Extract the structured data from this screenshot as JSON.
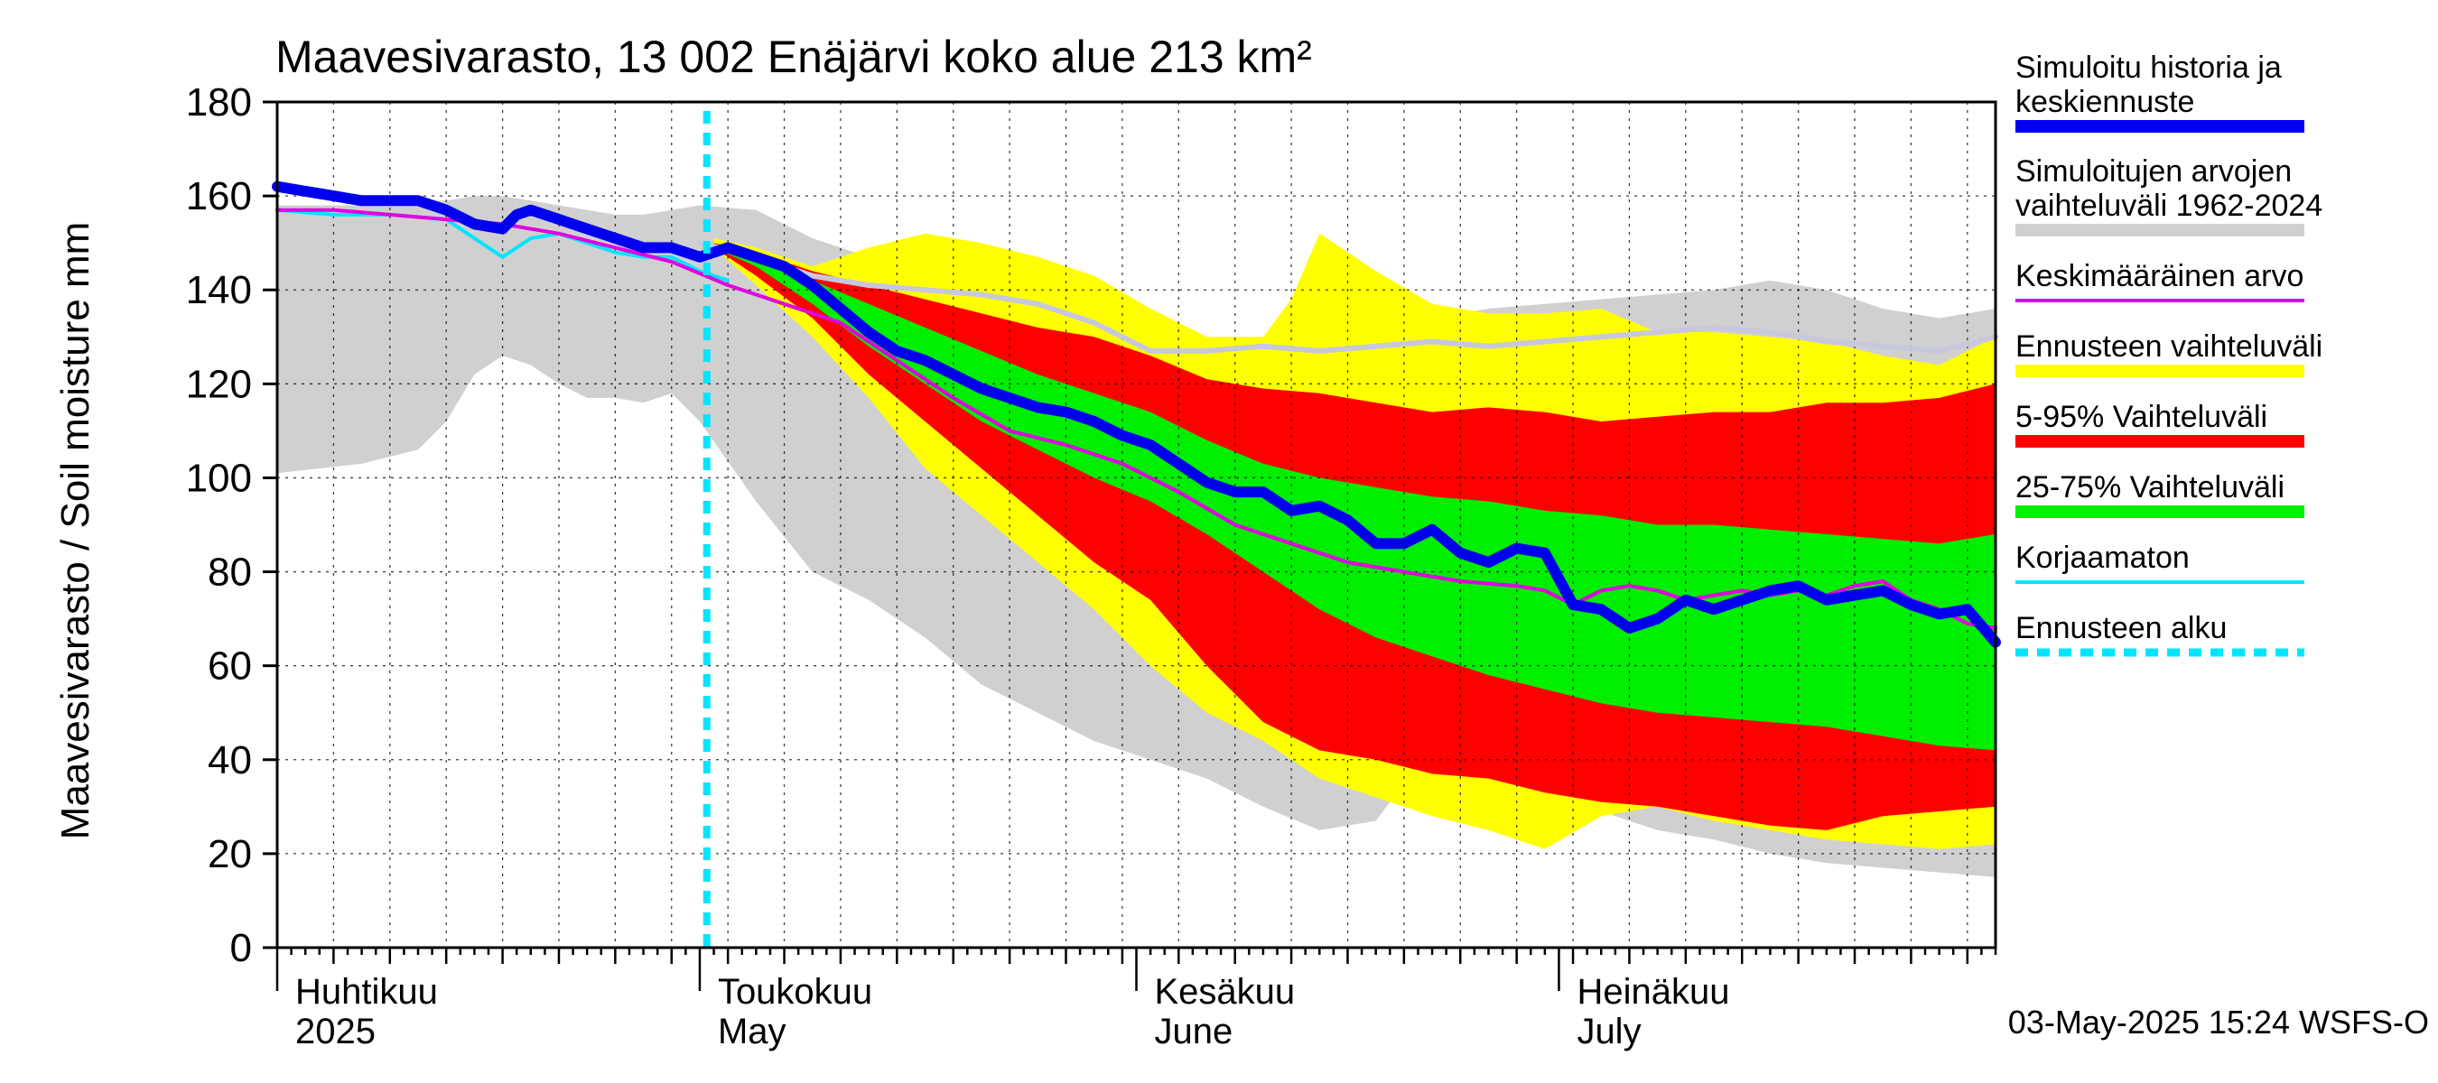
{
  "chart_data": {
    "type": "area",
    "title": "Maavesivarasto, 13 002 Enäjärvi koko alue 213 km²",
    "ylabel": "Maavesivarasto / Soil moisture   mm",
    "xlabel": "",
    "ylim": [
      0,
      180
    ],
    "xlim_days": [
      0,
      122
    ],
    "yticks": [
      0,
      20,
      40,
      60,
      80,
      100,
      120,
      140,
      160,
      180
    ],
    "grid": true,
    "forecast_start_day": 30.5,
    "months": [
      {
        "fi": "Huhtikuu",
        "en": "2025",
        "start_day": 0
      },
      {
        "fi": "Toukokuu",
        "en": "May",
        "start_day": 30
      },
      {
        "fi": "Kesäkuu",
        "en": "June",
        "start_day": 61
      },
      {
        "fi": "Heinäkuu",
        "en": "July",
        "start_day": 91
      }
    ],
    "timestamp": "03-May-2025 15:24 WSFS-O",
    "colors": {
      "history_range": "#d0d0d0",
      "forecast_range": "#ffff00",
      "range_5_95": "#ff0000",
      "range_25_75": "#00ee00",
      "mean": "#e000e0",
      "simulated": "#0000ee",
      "uncorrected": "#00e5ff",
      "forecast_start": "#00e5ff",
      "history_median": "#c8c8dc"
    },
    "legend": [
      {
        "key": "simulated",
        "label": "Simuloitu historia ja keskiennuste",
        "style": "thick"
      },
      {
        "key": "history_range",
        "label": "Simuloitujen arvojen vaihteluväli 1962-2024",
        "style": "thick"
      },
      {
        "key": "mean",
        "label": "Keskimääräinen arvo",
        "style": "thin"
      },
      {
        "key": "forecast_range",
        "label": "Ennusteen vaihteluväli",
        "style": "thick"
      },
      {
        "key": "range_5_95",
        "label": "5-95% Vaihteluväli",
        "style": "thick"
      },
      {
        "key": "range_25_75",
        "label": "25-75% Vaihteluväli",
        "style": "thick"
      },
      {
        "key": "uncorrected",
        "label": "Korjaamaton",
        "style": "thin"
      },
      {
        "key": "forecast_start",
        "label": "Ennusteen alku",
        "style": "dashed"
      }
    ],
    "series": [
      {
        "name": "Simuloitujen arvojen vaihteluväli 1962-2024",
        "x": [
          0,
          6,
          10,
          12,
          14,
          16,
          18,
          20,
          22,
          24,
          26,
          28,
          30,
          34,
          38,
          42,
          46,
          50,
          54,
          58,
          62,
          66,
          70,
          74,
          78,
          80,
          82,
          86,
          90,
          94,
          98,
          102,
          106,
          110,
          114,
          118,
          122
        ],
        "upper": [
          158,
          158,
          159,
          159,
          160,
          160,
          159,
          158,
          157,
          156,
          156,
          157,
          158,
          157,
          151,
          147,
          145,
          142,
          140,
          138,
          134,
          130,
          128,
          130,
          130,
          132,
          134,
          136,
          137,
          138,
          139,
          140,
          142,
          140,
          136,
          134,
          136
        ],
        "lower": [
          101,
          103,
          106,
          112,
          122,
          126,
          124,
          120,
          117,
          117,
          116,
          118,
          112,
          95,
          80,
          74,
          66,
          56,
          50,
          44,
          40,
          36,
          30,
          25,
          27,
          35,
          34,
          33,
          31,
          29,
          25,
          23,
          20,
          18,
          17,
          16,
          15
        ]
      },
      {
        "name": "Ennusteen vaihteluväli",
        "x": [
          31,
          34,
          38,
          42,
          46,
          50,
          54,
          58,
          62,
          66,
          70,
          72,
          74,
          78,
          82,
          86,
          90,
          94,
          98,
          102,
          106,
          110,
          114,
          118,
          122
        ],
        "upper": [
          151,
          149,
          145,
          149,
          152,
          150,
          147,
          143,
          136,
          130,
          130,
          138,
          152,
          144,
          137,
          135,
          135,
          136,
          131,
          131,
          130,
          129,
          126,
          124,
          130
        ],
        "lower": [
          149,
          141,
          130,
          117,
          102,
          92,
          82,
          72,
          60,
          50,
          44,
          40,
          36,
          32,
          28,
          25,
          21,
          28,
          30,
          27,
          25,
          23,
          22,
          21,
          22
        ]
      },
      {
        "name": "5-95% Vaihteluväli",
        "x": [
          31,
          34,
          38,
          42,
          46,
          50,
          54,
          58,
          62,
          66,
          70,
          74,
          78,
          82,
          86,
          90,
          94,
          98,
          102,
          106,
          110,
          114,
          118,
          122
        ],
        "upper": [
          150,
          148,
          144,
          141,
          138,
          135,
          132,
          130,
          126,
          121,
          119,
          118,
          116,
          114,
          115,
          114,
          112,
          113,
          114,
          114,
          116,
          116,
          117,
          120
        ],
        "lower": [
          149,
          143,
          134,
          122,
          112,
          102,
          92,
          82,
          74,
          60,
          48,
          42,
          40,
          37,
          36,
          33,
          31,
          30,
          28,
          26,
          25,
          28,
          29,
          30
        ]
      },
      {
        "name": "25-75% Vaihteluväli",
        "x": [
          31,
          34,
          38,
          42,
          46,
          50,
          54,
          58,
          62,
          66,
          70,
          74,
          78,
          82,
          86,
          90,
          94,
          98,
          102,
          106,
          110,
          114,
          118,
          122
        ],
        "upper": [
          149,
          147,
          142,
          137,
          132,
          127,
          122,
          118,
          114,
          108,
          103,
          100,
          98,
          96,
          95,
          93,
          92,
          90,
          90,
          89,
          88,
          87,
          86,
          88
        ],
        "lower": [
          149,
          145,
          137,
          128,
          120,
          112,
          106,
          100,
          95,
          88,
          80,
          72,
          66,
          62,
          58,
          55,
          52,
          50,
          49,
          48,
          47,
          45,
          43,
          42
        ]
      },
      {
        "name": "Simuloitu historia ja keskiennuste",
        "x": [
          0,
          2,
          4,
          6,
          8,
          10,
          12,
          14,
          16,
          17,
          18,
          20,
          22,
          24,
          26,
          28,
          30,
          32,
          34,
          36,
          38,
          40,
          42,
          44,
          46,
          48,
          50,
          52,
          54,
          56,
          58,
          60,
          62,
          64,
          66,
          68,
          70,
          72,
          74,
          76,
          78,
          80,
          82,
          84,
          86,
          88,
          90,
          92,
          94,
          96,
          98,
          100,
          102,
          104,
          106,
          108,
          110,
          112,
          114,
          116,
          118,
          120,
          122
        ],
        "values": [
          162,
          161,
          160,
          159,
          159,
          159,
          157,
          154,
          153,
          156,
          157,
          155,
          153,
          151,
          149,
          149,
          147,
          149,
          147,
          145,
          141,
          136,
          131,
          127,
          125,
          122,
          119,
          117,
          115,
          114,
          112,
          109,
          107,
          103,
          99,
          97,
          97,
          93,
          94,
          91,
          86,
          86,
          89,
          84,
          82,
          85,
          84,
          73,
          72,
          68,
          70,
          74,
          72,
          74,
          76,
          77,
          74,
          75,
          76,
          73,
          71,
          72,
          65
        ]
      },
      {
        "name": "Keskimääräinen arvo",
        "x": [
          0,
          4,
          8,
          12,
          16,
          20,
          24,
          28,
          32,
          36,
          40,
          44,
          48,
          52,
          56,
          60,
          64,
          68,
          72,
          76,
          80,
          84,
          88,
          90,
          92,
          94,
          96,
          98,
          100,
          102,
          104,
          106,
          108,
          110,
          112,
          114,
          116,
          118,
          120,
          122
        ],
        "values": [
          157,
          157,
          156,
          155,
          154,
          152,
          149,
          146,
          141,
          137,
          133,
          125,
          117,
          110,
          107,
          103,
          97,
          90,
          86,
          82,
          80,
          78,
          77,
          76,
          73,
          76,
          77,
          76,
          74,
          75,
          76,
          75,
          76,
          75,
          77,
          78,
          74,
          72,
          69,
          68
        ]
      },
      {
        "name": "Korjaamaton",
        "x": [
          0,
          4,
          8,
          12,
          16,
          18,
          20,
          22,
          24,
          26,
          28,
          30,
          32
        ],
        "values": [
          157,
          156,
          156,
          155,
          147,
          151,
          152,
          150,
          148,
          147,
          147,
          144,
          142
        ]
      },
      {
        "name": "history_median",
        "x": [
          30,
          34,
          38,
          42,
          46,
          50,
          54,
          58,
          62,
          66,
          70,
          74,
          78,
          82,
          86,
          90,
          94,
          98,
          102,
          106,
          110,
          114,
          118,
          122
        ],
        "values": [
          150,
          147,
          143,
          141,
          140,
          139,
          137,
          133,
          127,
          127,
          128,
          127,
          128,
          129,
          128,
          129,
          130,
          131,
          132,
          131,
          129,
          128,
          127,
          130
        ]
      }
    ]
  }
}
